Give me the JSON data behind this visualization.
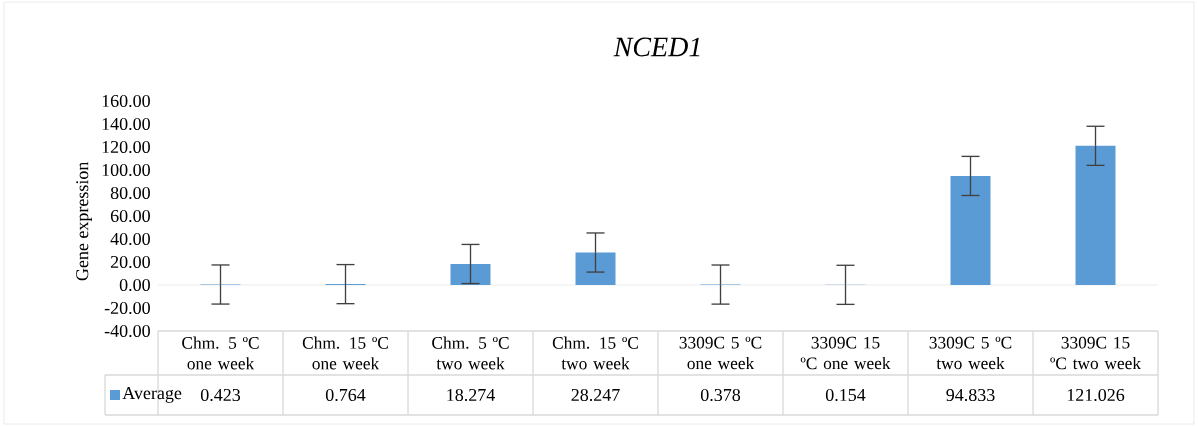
{
  "chart_data": {
    "type": "bar",
    "title": "NCED1",
    "ylabel": "Gene expression",
    "categories": [
      "Chm. 5 ºC one week",
      "Chm. 15 ºC one week",
      "Chm. 5 ºC two week",
      "Chm. 15 ºC two week",
      "3309C  5 ºC one week",
      "3309C 15 ºC one week",
      "3309C 5 ºC two week",
      "3309C 15 ºC two week"
    ],
    "series": [
      {
        "name": "Average",
        "color": "#5b9bd5",
        "values": [
          0.423,
          0.764,
          18.274,
          28.247,
          0.378,
          0.154,
          94.833,
          121.026
        ],
        "errors": [
          17,
          17,
          17,
          17,
          17,
          17,
          17,
          17
        ]
      }
    ],
    "ylim": [
      -40,
      160
    ],
    "yticks": [
      {
        "value": -40,
        "label": "-40.00"
      },
      {
        "value": -20,
        "label": "-20.00"
      },
      {
        "value": 0,
        "label": "0.00"
      },
      {
        "value": 20,
        "label": "20.00"
      },
      {
        "value": 40,
        "label": "40.00"
      },
      {
        "value": 60,
        "label": "60.00"
      },
      {
        "value": 80,
        "label": "80.00"
      },
      {
        "value": 100,
        "label": "100.00"
      },
      {
        "value": 120,
        "label": "120.00"
      },
      {
        "value": 140,
        "label": "140.00"
      },
      {
        "value": 160,
        "label": "160.00"
      }
    ],
    "data_labels": true,
    "legend": "bottom"
  }
}
